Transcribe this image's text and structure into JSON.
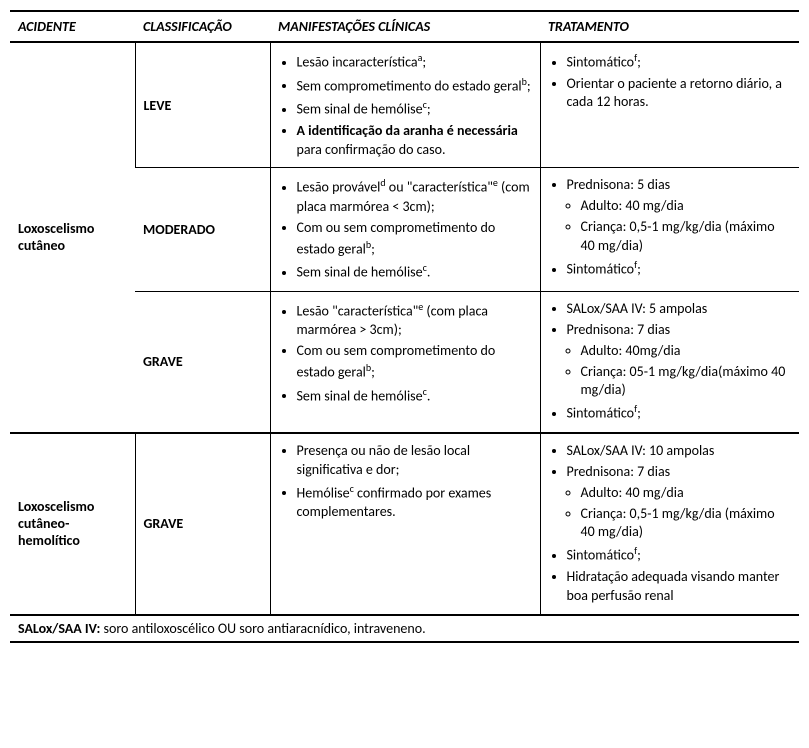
{
  "headers": {
    "acidente": "ACIDENTE",
    "classificacao": "CLASSIFICAÇÃO",
    "manifestacoes": "MANIFESTAÇÕES CLÍNICAS",
    "tratamento": "TRATAMENTO"
  },
  "rows": [
    {
      "acidente": "Loxoscelismo cutâneo",
      "acidente_rowspan": 3,
      "classificacao": "LEVE",
      "manifestacoes": [
        {
          "text": "Lesão incaracterística",
          "sup": "a",
          "suffix": ";"
        },
        {
          "text": "Sem comprometimento do estado geral",
          "sup": "b",
          "suffix": ";"
        },
        {
          "text": "Sem sinal de hemólise",
          "sup": "c",
          "suffix": ";"
        },
        {
          "bold_prefix": "A identificação da aranha é necessária",
          "text": " para confirmação do caso."
        }
      ],
      "tratamento": [
        {
          "text": "Sintomático",
          "sup": "f",
          "suffix": ";"
        },
        {
          "text": "Orientar o paciente a retorno diário, a cada 12 horas."
        }
      ]
    },
    {
      "classificacao": "MODERADO",
      "manifestacoes": [
        {
          "text": "Lesão provável",
          "sup": "d",
          "extra": " ou \"característica\"",
          "sup2": "e",
          "suffix2": " (com placa marmórea < 3cm);"
        },
        {
          "text": "Com ou sem comprometimento do estado geral",
          "sup": "b",
          "suffix": ";"
        },
        {
          "text": "Sem sinal de hemólise",
          "sup": "c",
          "suffix": "."
        }
      ],
      "tratamento": [
        {
          "text": "Prednisona: 5 dias",
          "sub": [
            {
              "text": "Adulto: 40 mg/dia"
            },
            {
              "text": "Criança: 0,5-1 mg/kg/dia (máximo 40 mg/dia)"
            }
          ]
        },
        {
          "text": "Sintomático",
          "sup": "f",
          "suffix": ";"
        }
      ]
    },
    {
      "classificacao": "GRAVE",
      "manifestacoes": [
        {
          "text": "Lesão \"característica\"",
          "sup": "e",
          "suffix": " (com placa marmórea > 3cm);"
        },
        {
          "text": "Com ou sem comprometimento do estado geral",
          "sup": "b",
          "suffix": ";"
        },
        {
          "text": "Sem sinal de hemólise",
          "sup": "c",
          "suffix": "."
        }
      ],
      "tratamento": [
        {
          "text": "SALox/SAA IV: 5 ampolas"
        },
        {
          "text": "Prednisona: 7 dias",
          "sub": [
            {
              "text": "Adulto: 40mg/dia"
            },
            {
              "text": "Criança: 05-1 mg/kg/dia(máximo 40 mg/dia)"
            }
          ]
        },
        {
          "text": "Sintomático",
          "sup": "f",
          "suffix": ";"
        }
      ]
    },
    {
      "acidente": "Loxoscelismo cutâneo-hemolítico",
      "classificacao": "GRAVE",
      "manifestacoes": [
        {
          "text": "Presença ou não de lesão local significativa e dor;"
        },
        {
          "text": "Hemólise",
          "sup": "c",
          "suffix": " confirmado por exames complementares."
        }
      ],
      "tratamento": [
        {
          "text": "SALox/SAA IV: 10 ampolas"
        },
        {
          "text": "Prednisona: 7 dias",
          "sub": [
            {
              "text": "Adulto: 40 mg/dia"
            },
            {
              "text": "Criança: 0,5-1 mg/kg/dia (máximo 40 mg/dia)"
            }
          ]
        },
        {
          "text": "Sintomático",
          "sup": "f",
          "suffix": ";"
        },
        {
          "text": "Hidratação adequada visando manter boa perfusão renal"
        }
      ]
    }
  ],
  "footer": {
    "bold": "SALox/SAA IV:",
    "text": " soro antiloxoscélico OU soro antiaracnídico, intraveneno."
  }
}
